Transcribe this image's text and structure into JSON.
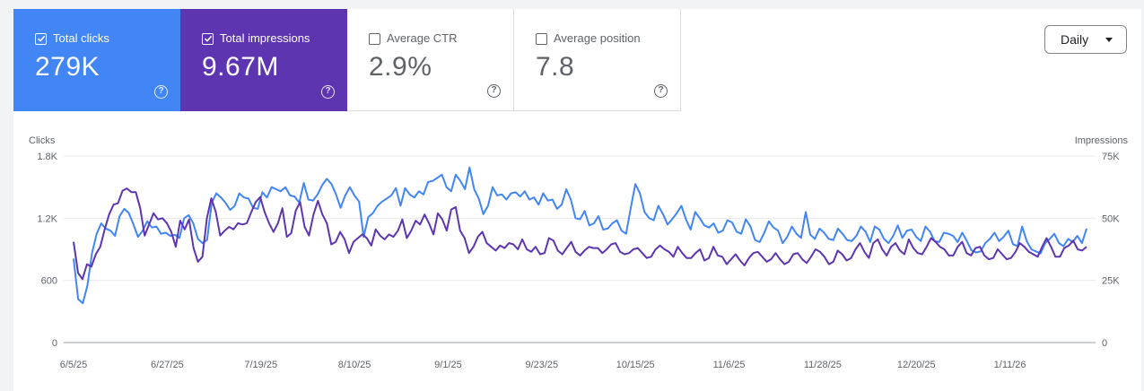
{
  "metrics": [
    {
      "label": "Total clicks",
      "value": "279K",
      "checked": true,
      "color": "#4285f4"
    },
    {
      "label": "Total impressions",
      "value": "9.67M",
      "checked": true,
      "color": "#5e35b1"
    },
    {
      "label": "Average CTR",
      "value": "2.9%",
      "checked": false
    },
    {
      "label": "Average position",
      "value": "7.8",
      "checked": false
    }
  ],
  "help_glyph": "?",
  "granularity": {
    "selected": "Daily"
  },
  "chart_data": {
    "type": "line",
    "y_left": {
      "label": "Clicks",
      "ticks": [
        "0",
        "600",
        "1.2K",
        "1.8K"
      ],
      "range": [
        0,
        1800
      ]
    },
    "y_right": {
      "label": "Impressions",
      "ticks": [
        "0",
        "25K",
        "50K",
        "75K"
      ],
      "range": [
        0,
        75000
      ]
    },
    "x_tick_labels": [
      "6/5/25",
      "6/27/25",
      "7/19/25",
      "8/10/25",
      "9/1/25",
      "9/23/25",
      "10/15/25",
      "11/6/25",
      "11/28/25",
      "12/20/25",
      "1/11/26"
    ],
    "x_range": [
      "6/5/25",
      "1/29/26"
    ],
    "grid": true,
    "series": [
      {
        "name": "Total clicks",
        "axis": "left",
        "color": "#4285f4",
        "values": [
          810,
          420,
          380,
          550,
          860,
          1050,
          1150,
          1100,
          1080,
          1030,
          1220,
          1290,
          1250,
          1140,
          1020,
          1080,
          1170,
          1110,
          1120,
          1050,
          1060,
          1030,
          1040,
          1010,
          1200,
          1230,
          1150,
          1000,
          960,
          990,
          1350,
          1440,
          1400,
          1350,
          1280,
          1320,
          1440,
          1400,
          1390,
          1300,
          1290,
          1450,
          1400,
          1500,
          1480,
          1460,
          1500,
          1420,
          1410,
          1350,
          1540,
          1380,
          1370,
          1430,
          1520,
          1580,
          1530,
          1430,
          1300,
          1420,
          1500,
          1420,
          1360,
          1020,
          1210,
          1250,
          1320,
          1360,
          1390,
          1420,
          1490,
          1320,
          1490,
          1430,
          1400,
          1460,
          1430,
          1550,
          1560,
          1590,
          1620,
          1500,
          1460,
          1620,
          1560,
          1480,
          1690,
          1480,
          1390,
          1240,
          1320,
          1500,
          1420,
          1430,
          1380,
          1440,
          1450,
          1410,
          1460,
          1380,
          1400,
          1330,
          1440,
          1370,
          1380,
          1290,
          1330,
          1480,
          1380,
          1200,
          1190,
          1270,
          1130,
          1150,
          1220,
          1090,
          1100,
          1150,
          1180,
          1080,
          1050,
          1300,
          1530,
          1440,
          1260,
          1200,
          1180,
          1320,
          1240,
          1140,
          1190,
          1250,
          1320,
          1190,
          1090,
          1260,
          1200,
          1130,
          1110,
          1150,
          1060,
          1080,
          1180,
          1160,
          1070,
          1050,
          1190,
          1120,
          990,
          970,
          1060,
          1170,
          1110,
          1080,
          960,
          1020,
          1120,
          1050,
          1010,
          1260,
          1040,
          1000,
          1100,
          1060,
          1000,
          990,
          1100,
          1050,
          990,
          980,
          1030,
          1120,
          1070,
          970,
          1120,
          1090,
          1000,
          960,
          1030,
          1130,
          1010,
          1080,
          1090,
          1020,
          980,
          1120,
          1070,
          980,
          970,
          1060,
          1050,
          1030,
          970,
          1060,
          980,
          890,
          870,
          880,
          960,
          1000,
          1060,
          980,
          1020,
          1080,
          950,
          930,
          1120,
          980,
          900,
          880,
          860,
          960,
          1000,
          1050,
          960,
          930,
          1000,
          970,
          1030,
          960,
          1100
        ]
      },
      {
        "name": "Total impressions",
        "axis": "right",
        "color": "#5e35b1",
        "values": [
          40500,
          28000,
          25500,
          31500,
          30500,
          35500,
          38500,
          45500,
          51500,
          55500,
          56000,
          61000,
          62000,
          60500,
          60500,
          54000,
          43000,
          47500,
          52000,
          49500,
          50000,
          48000,
          44500,
          38500,
          49000,
          45500,
          49500,
          38000,
          32500,
          34500,
          50000,
          58000,
          52500,
          43000,
          45000,
          46500,
          45500,
          48000,
          47500,
          48000,
          52500,
          56500,
          58500,
          52500,
          48000,
          44500,
          48000,
          54000,
          42500,
          44000,
          53000,
          56500,
          46500,
          43000,
          51500,
          57000,
          51500,
          48000,
          39500,
          40500,
          44500,
          41500,
          36000,
          40500,
          42000,
          43500,
          42000,
          39000,
          45500,
          43000,
          41500,
          43500,
          42500,
          45000,
          49500,
          42000,
          45000,
          49000,
          47500,
          51500,
          48000,
          43500,
          52000,
          49500,
          45000,
          53500,
          54500,
          45000,
          42000,
          36000,
          38500,
          42500,
          44500,
          40000,
          38500,
          37000,
          39000,
          38000,
          40000,
          39500,
          37500,
          41500,
          37500,
          36500,
          38500,
          35500,
          36000,
          42000,
          41000,
          37000,
          35500,
          38000,
          40500,
          36500,
          35000,
          37000,
          38500,
          38000,
          38000,
          36000,
          37500,
          39500,
          40000,
          36500,
          35500,
          36000,
          37500,
          38000,
          36000,
          34000,
          34500,
          37500,
          39000,
          37500,
          36500,
          34500,
          38500,
          36000,
          34000,
          34000,
          36000,
          37500,
          33000,
          34000,
          38500,
          35000,
          34500,
          31500,
          33500,
          35500,
          33000,
          31000,
          34000,
          36000,
          36500,
          34500,
          32500,
          33500,
          36000,
          33500,
          31500,
          32500,
          35500,
          36000,
          33500,
          32000,
          34500,
          37500,
          36500,
          34500,
          31500,
          32500,
          37000,
          35500,
          33000,
          34000,
          37500,
          40000,
          36500,
          34000,
          40000,
          41500,
          37500,
          35000,
          38500,
          40000,
          37000,
          35500,
          41500,
          38000,
          36000,
          35500,
          38500,
          42000,
          40500,
          38500,
          37500,
          35000,
          35000,
          38500,
          40500,
          36000,
          35000,
          38000,
          38500,
          35000,
          33500,
          34000,
          37500,
          35500,
          33500,
          34000,
          36500,
          40000,
          38500,
          36500,
          35500,
          34500,
          38500,
          42000,
          38500,
          34500,
          34500,
          38000,
          39000,
          41000,
          37500,
          37000,
          38500
        ]
      }
    ]
  }
}
